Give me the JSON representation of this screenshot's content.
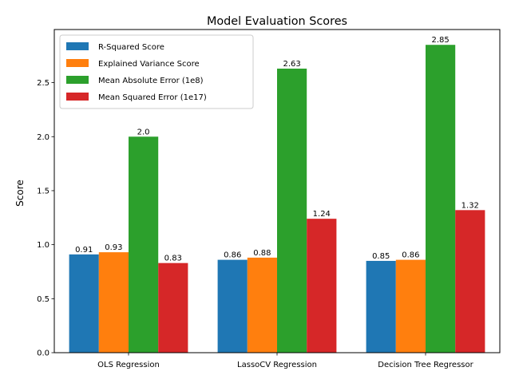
{
  "chart_data": {
    "type": "bar",
    "title": "Model Evaluation Scores",
    "xlabel": "",
    "ylabel": "Score",
    "ylim": [
      0,
      2.992
    ],
    "yticks": [
      "0.0",
      "0.5",
      "1.0",
      "1.5",
      "2.0",
      "2.5"
    ],
    "categories": [
      "OLS Regression",
      "LassoCV Regression",
      "Decision Tree Regressor"
    ],
    "series": [
      {
        "name": "R-Squared Score",
        "color": "#1f77b4",
        "values": [
          0.91,
          0.86,
          0.85
        ],
        "labels": [
          "0.91",
          "0.86",
          "0.85"
        ]
      },
      {
        "name": "Explained Variance Score",
        "color": "#ff7f0e",
        "values": [
          0.93,
          0.88,
          0.86
        ],
        "labels": [
          "0.93",
          "0.88",
          "0.86"
        ]
      },
      {
        "name": "Mean Absolute Error (1e8)",
        "color": "#2ca02c",
        "values": [
          2.0,
          2.63,
          2.85
        ],
        "labels": [
          "2.0",
          "2.63",
          "2.85"
        ]
      },
      {
        "name": "Mean Squared Error (1e17)",
        "color": "#d62728",
        "values": [
          0.83,
          1.24,
          1.32
        ],
        "labels": [
          "0.83",
          "1.24",
          "1.32"
        ]
      }
    ],
    "legend": "top-left",
    "grid": false
  }
}
